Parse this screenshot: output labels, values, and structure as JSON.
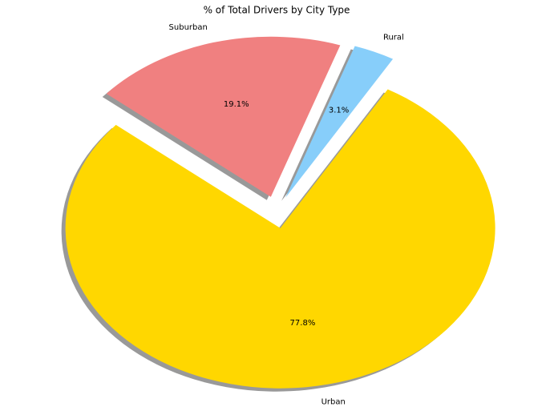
{
  "chart_data": {
    "type": "pie",
    "title": "% of Total Drivers by City Type",
    "categories": [
      "Rural",
      "Suburban",
      "Urban"
    ],
    "values": [
      3.1,
      19.1,
      77.8
    ],
    "value_labels": [
      "3.1%",
      "19.1%",
      "77.8%"
    ],
    "colors": [
      "#87cefa",
      "#f08080",
      "#ffd700"
    ],
    "explode": [
      0.1,
      0.1,
      0.1
    ],
    "startangle": 60,
    "shadow": true
  }
}
